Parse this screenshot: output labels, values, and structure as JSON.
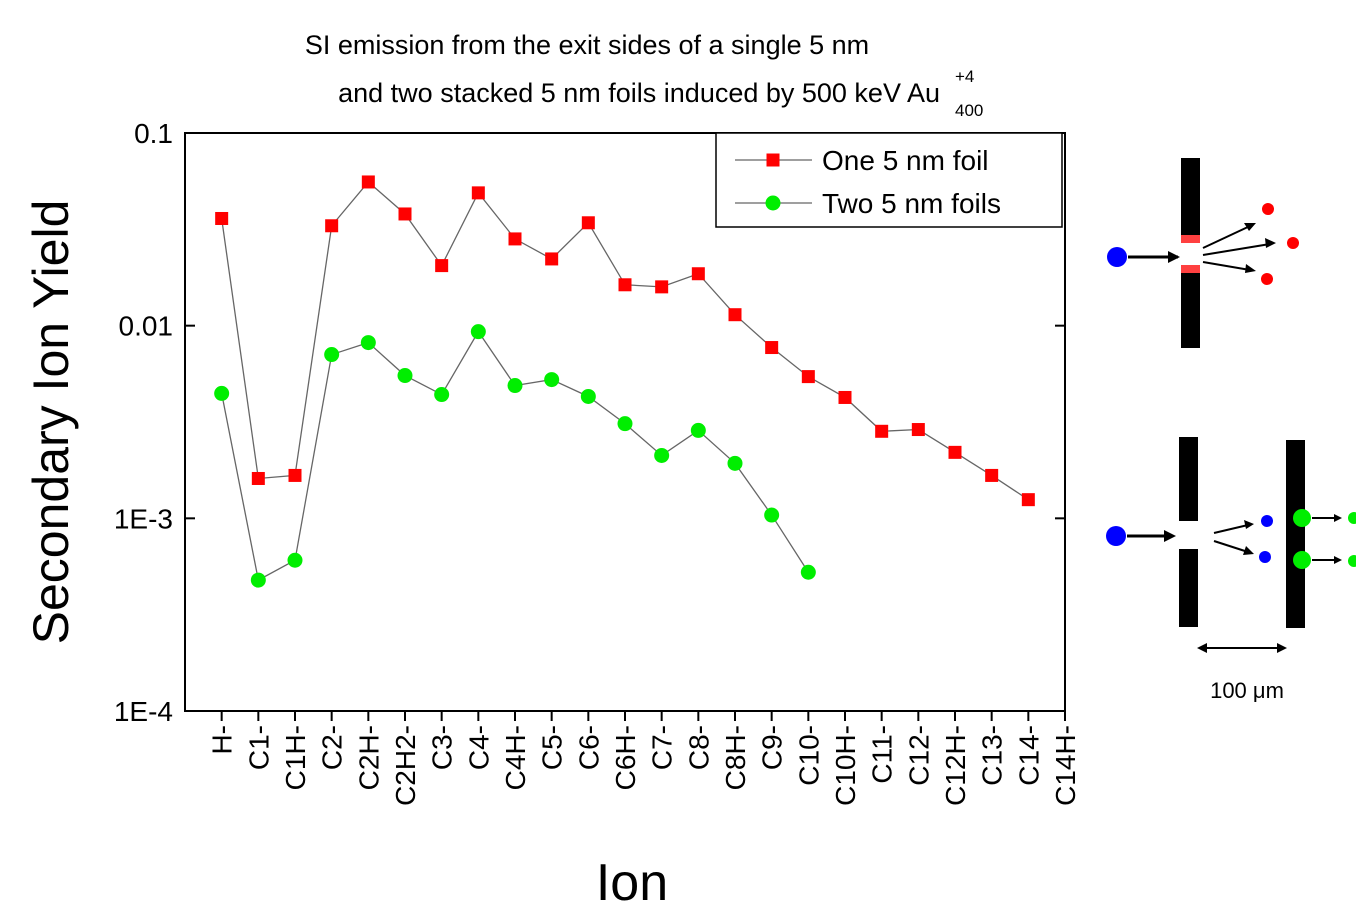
{
  "chart_data": {
    "type": "line",
    "title_lines": [
      "SI emission from the exit sides of a single 5 nm",
      "and two stacked 5 nm foils induced by 500 keV Au"
    ],
    "title_superscript": "+4",
    "title_subscript": "400",
    "x_label": "Ion",
    "y_label": "Secondary Ion Yield",
    "categories": [
      "H-",
      "C1-",
      "C1H-",
      "C2-",
      "C2H-",
      "C2H2-",
      "C3-",
      "C4-",
      "C4H-",
      "C5-",
      "C6-",
      "C6H-",
      "C7-",
      "C8-",
      "C8H-",
      "C9-",
      "C10-",
      "C10H-",
      "C11-",
      "C12-",
      "C12H-",
      "C13-",
      "C14-",
      "C14H-"
    ],
    "series": [
      {
        "name": "One 5 nm foil",
        "color": "#ff0000",
        "marker": "square",
        "values": [
          0.036,
          0.00161,
          0.00167,
          0.033,
          0.0557,
          0.038,
          0.0205,
          0.0489,
          0.0282,
          0.0222,
          0.0342,
          0.0163,
          0.0159,
          0.0186,
          0.0114,
          0.0077,
          0.00544,
          0.00424,
          0.00283,
          0.00289,
          0.0022,
          0.00167,
          0.00125,
          null
        ]
      },
      {
        "name": "Two 5 nm foils",
        "color": "#00ee00",
        "marker": "circle",
        "values": [
          0.00445,
          0.000478,
          0.000606,
          0.00708,
          0.00817,
          0.00551,
          0.00439,
          0.00931,
          0.00489,
          0.00525,
          0.00429,
          0.0031,
          0.00212,
          0.00286,
          0.00193,
          0.00104,
          0.000525,
          null,
          null,
          null,
          null,
          null,
          null,
          null
        ]
      }
    ],
    "ylim": [
      0.0001,
      0.1
    ],
    "yticks": [
      0.1,
      0.01,
      {
        "value": 0.001,
        "label": "1E-3"
      },
      {
        "value": 0.0001,
        "label": "1E-4"
      }
    ],
    "y_scale": "log",
    "legend": "upper right",
    "line_color": "#666666",
    "diagram_scale_label": "100 μm"
  }
}
